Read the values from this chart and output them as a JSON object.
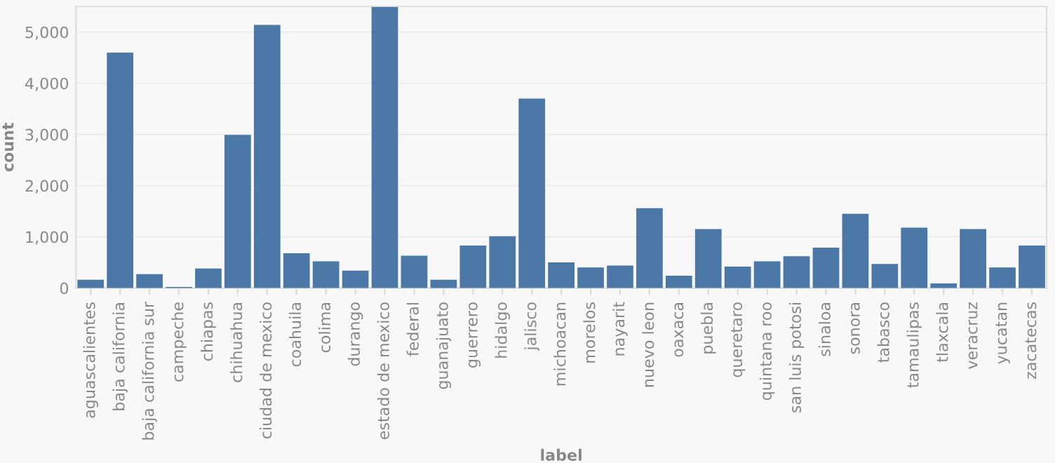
{
  "chart_data": {
    "type": "bar",
    "xlabel": "label",
    "ylabel": "count",
    "categories": [
      "aguascalientes",
      "baja california",
      "baja california sur",
      "campeche",
      "chiapas",
      "chihuahua",
      "ciudad de mexico",
      "coahuila",
      "colima",
      "durango",
      "estado de mexico",
      "federal",
      "guanajuato",
      "guerrero",
      "hidalgo",
      "jalisco",
      "michoacan",
      "morelos",
      "nayarit",
      "nuevo leon",
      "oaxaca",
      "puebla",
      "queretaro",
      "quintana roo",
      "san luis potosi",
      "sinaloa",
      "sonora",
      "tabasco",
      "tamaulipas",
      "tlaxcala",
      "veracruz",
      "yucatan",
      "zacatecas"
    ],
    "values": [
      160,
      4600,
      270,
      20,
      380,
      2990,
      5140,
      680,
      520,
      340,
      5490,
      630,
      160,
      830,
      1010,
      3700,
      500,
      400,
      440,
      1560,
      240,
      1150,
      420,
      520,
      620,
      790,
      1450,
      470,
      1180,
      90,
      1150,
      400,
      830
    ],
    "color": "#4c78a8",
    "ylim": [
      0,
      5500
    ],
    "yticks": [
      {
        "value": 0,
        "label": "0"
      },
      {
        "value": 1000,
        "label": "1,000"
      },
      {
        "value": 2000,
        "label": "2,000"
      },
      {
        "value": 3000,
        "label": "3,000"
      },
      {
        "value": 4000,
        "label": "4,000"
      },
      {
        "value": 5000,
        "label": "5,000"
      }
    ],
    "grid": "y"
  }
}
